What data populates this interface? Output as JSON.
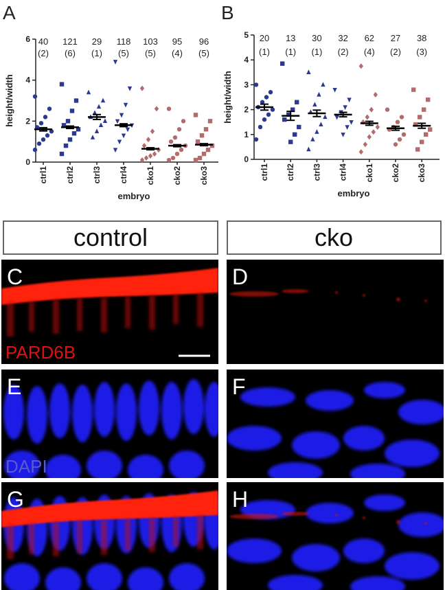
{
  "chart_data": [
    {
      "type": "strip",
      "title": "A",
      "y_label": "height/width",
      "x_label": "embryo",
      "categories": [
        "ctrl1",
        "ctrl2",
        "ctrl3",
        "ctrl4",
        "cko1",
        "cko2",
        "cko3"
      ],
      "n": [
        40,
        121,
        29,
        118,
        103,
        95,
        96
      ],
      "embryo_labels": [
        "(2)",
        "(6)",
        "(1)",
        "(5)",
        "(5)",
        "(4)",
        "(5)"
      ],
      "colors": [
        "#2b3990",
        "#2b3990",
        "#2b3990",
        "#2b3990",
        "#b36b6b",
        "#b36b6b",
        "#b36b6b"
      ],
      "markers": [
        "circle",
        "square",
        "triangle",
        "triangle-down",
        "diamond",
        "circle",
        "square"
      ],
      "points": [
        [
          3.2,
          2.6,
          2.2,
          1.9,
          1.7,
          1.5,
          1.3,
          1.1,
          0.9,
          0.6
        ],
        [
          3.8,
          3.0,
          2.5,
          2.0,
          1.8,
          1.6,
          1.4,
          1.1,
          0.8,
          0.4
        ],
        [
          3.4,
          3.0,
          2.7,
          2.4,
          2.2,
          2.0,
          1.8,
          1.5,
          1.2
        ],
        [
          4.9,
          3.6,
          2.8,
          2.3,
          2.0,
          1.8,
          1.6,
          1.3,
          1.0,
          0.6
        ],
        [
          3.6,
          2.6,
          1.5,
          1.1,
          0.8,
          0.6,
          0.4,
          0.3,
          0.2,
          0.1
        ],
        [
          2.6,
          2.0,
          1.6,
          1.2,
          1.0,
          0.8,
          0.6,
          0.4,
          0.2,
          0.1
        ],
        [
          2.3,
          2.0,
          1.6,
          1.3,
          1.0,
          0.8,
          0.6,
          0.4,
          0.2,
          0.1
        ]
      ],
      "means": [
        1.6,
        1.7,
        2.2,
        1.8,
        0.65,
        0.8,
        0.85
      ],
      "errors": [
        0.08,
        0.06,
        0.12,
        0.07,
        0.05,
        0.05,
        0.05
      ],
      "ylim": [
        0,
        6
      ],
      "yticks": [
        0,
        2,
        4,
        6
      ]
    },
    {
      "type": "strip",
      "title": "B",
      "y_label": "height/width",
      "x_label": "embryo",
      "categories": [
        "ctrl1",
        "ctrl2",
        "ctrl3",
        "ctrl4",
        "cko1",
        "cko2",
        "cko3"
      ],
      "n": [
        20,
        13,
        30,
        32,
        62,
        27,
        38
      ],
      "embryo_labels": [
        "(1)",
        "(1)",
        "(1)",
        "(2)",
        "(4)",
        "(2)",
        "(3)"
      ],
      "colors": [
        "#2b3990",
        "#2b3990",
        "#2b3990",
        "#2b3990",
        "#b36b6b",
        "#b36b6b",
        "#b36b6b"
      ],
      "markers": [
        "circle",
        "square",
        "triangle",
        "triangle-down",
        "diamond",
        "circle",
        "square"
      ],
      "points": [
        [
          3.0,
          2.7,
          2.5,
          2.3,
          2.1,
          2.0,
          1.8,
          1.6,
          1.3,
          0.8
        ],
        [
          3.85,
          2.3,
          2.0,
          1.8,
          1.6,
          1.3,
          1.0,
          0.7
        ],
        [
          3.5,
          3.0,
          2.6,
          2.2,
          1.9,
          1.7,
          1.4,
          1.1,
          0.8,
          0.4
        ],
        [
          2.8,
          2.4,
          2.1,
          1.9,
          1.7,
          1.5,
          1.3,
          1.0
        ],
        [
          3.75,
          2.6,
          2.0,
          1.7,
          1.5,
          1.3,
          1.1,
          0.9,
          0.6,
          0.3
        ],
        [
          2.0,
          1.7,
          1.5,
          1.3,
          1.2,
          1.0,
          0.8,
          0.6
        ],
        [
          2.8,
          2.4,
          2.0,
          1.7,
          1.4,
          1.2,
          1.0,
          0.7,
          0.4
        ]
      ],
      "means": [
        2.1,
        1.75,
        1.85,
        1.8,
        1.45,
        1.25,
        1.35
      ],
      "errors": [
        0.12,
        0.18,
        0.13,
        0.09,
        0.08,
        0.08,
        0.1
      ],
      "ylim": [
        0,
        5
      ],
      "yticks": [
        0,
        1,
        2,
        3,
        4,
        5
      ]
    }
  ],
  "figure": {
    "headers": [
      "control",
      "cko"
    ],
    "panels": [
      {
        "letter": "C",
        "stain": "PARD6B"
      },
      {
        "letter": "D"
      },
      {
        "letter": "E",
        "stain": "DAPI"
      },
      {
        "letter": "F"
      },
      {
        "letter": "G"
      },
      {
        "letter": "H"
      }
    ]
  }
}
